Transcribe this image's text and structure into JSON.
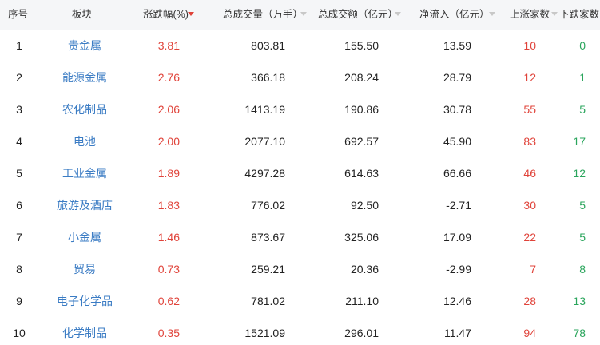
{
  "table": {
    "header": [
      "序号",
      "板块",
      "涨跌幅(%)",
      "总成交量（万手）",
      "总成交额（亿元）",
      "净流入（亿元）",
      "上涨家数",
      "下跌家数"
    ],
    "rows": [
      [
        "1",
        "贵金属",
        "3.81",
        "803.81",
        "155.50",
        "13.59",
        "10",
        "0"
      ],
      [
        "2",
        "能源金属",
        "2.76",
        "366.18",
        "208.24",
        "28.79",
        "12",
        "1"
      ],
      [
        "3",
        "农化制品",
        "2.06",
        "1413.19",
        "190.86",
        "30.78",
        "55",
        "5"
      ],
      [
        "4",
        "电池",
        "2.00",
        "2077.10",
        "692.57",
        "45.90",
        "83",
        "17"
      ],
      [
        "5",
        "工业金属",
        "1.89",
        "4297.28",
        "614.63",
        "66.66",
        "46",
        "12"
      ],
      [
        "6",
        "旅游及酒店",
        "1.83",
        "776.02",
        "92.50",
        "-2.71",
        "30",
        "5"
      ],
      [
        "7",
        "小金属",
        "1.46",
        "873.67",
        "325.06",
        "17.09",
        "22",
        "5"
      ],
      [
        "8",
        "贸易",
        "0.73",
        "259.21",
        "20.36",
        "-2.99",
        "7",
        "8"
      ],
      [
        "9",
        "电子化学品",
        "0.62",
        "781.02",
        "211.10",
        "12.46",
        "28",
        "13"
      ],
      [
        "10",
        "化学制品",
        "0.35",
        "1521.09",
        "296.01",
        "11.47",
        "94",
        "78"
      ]
    ]
  }
}
